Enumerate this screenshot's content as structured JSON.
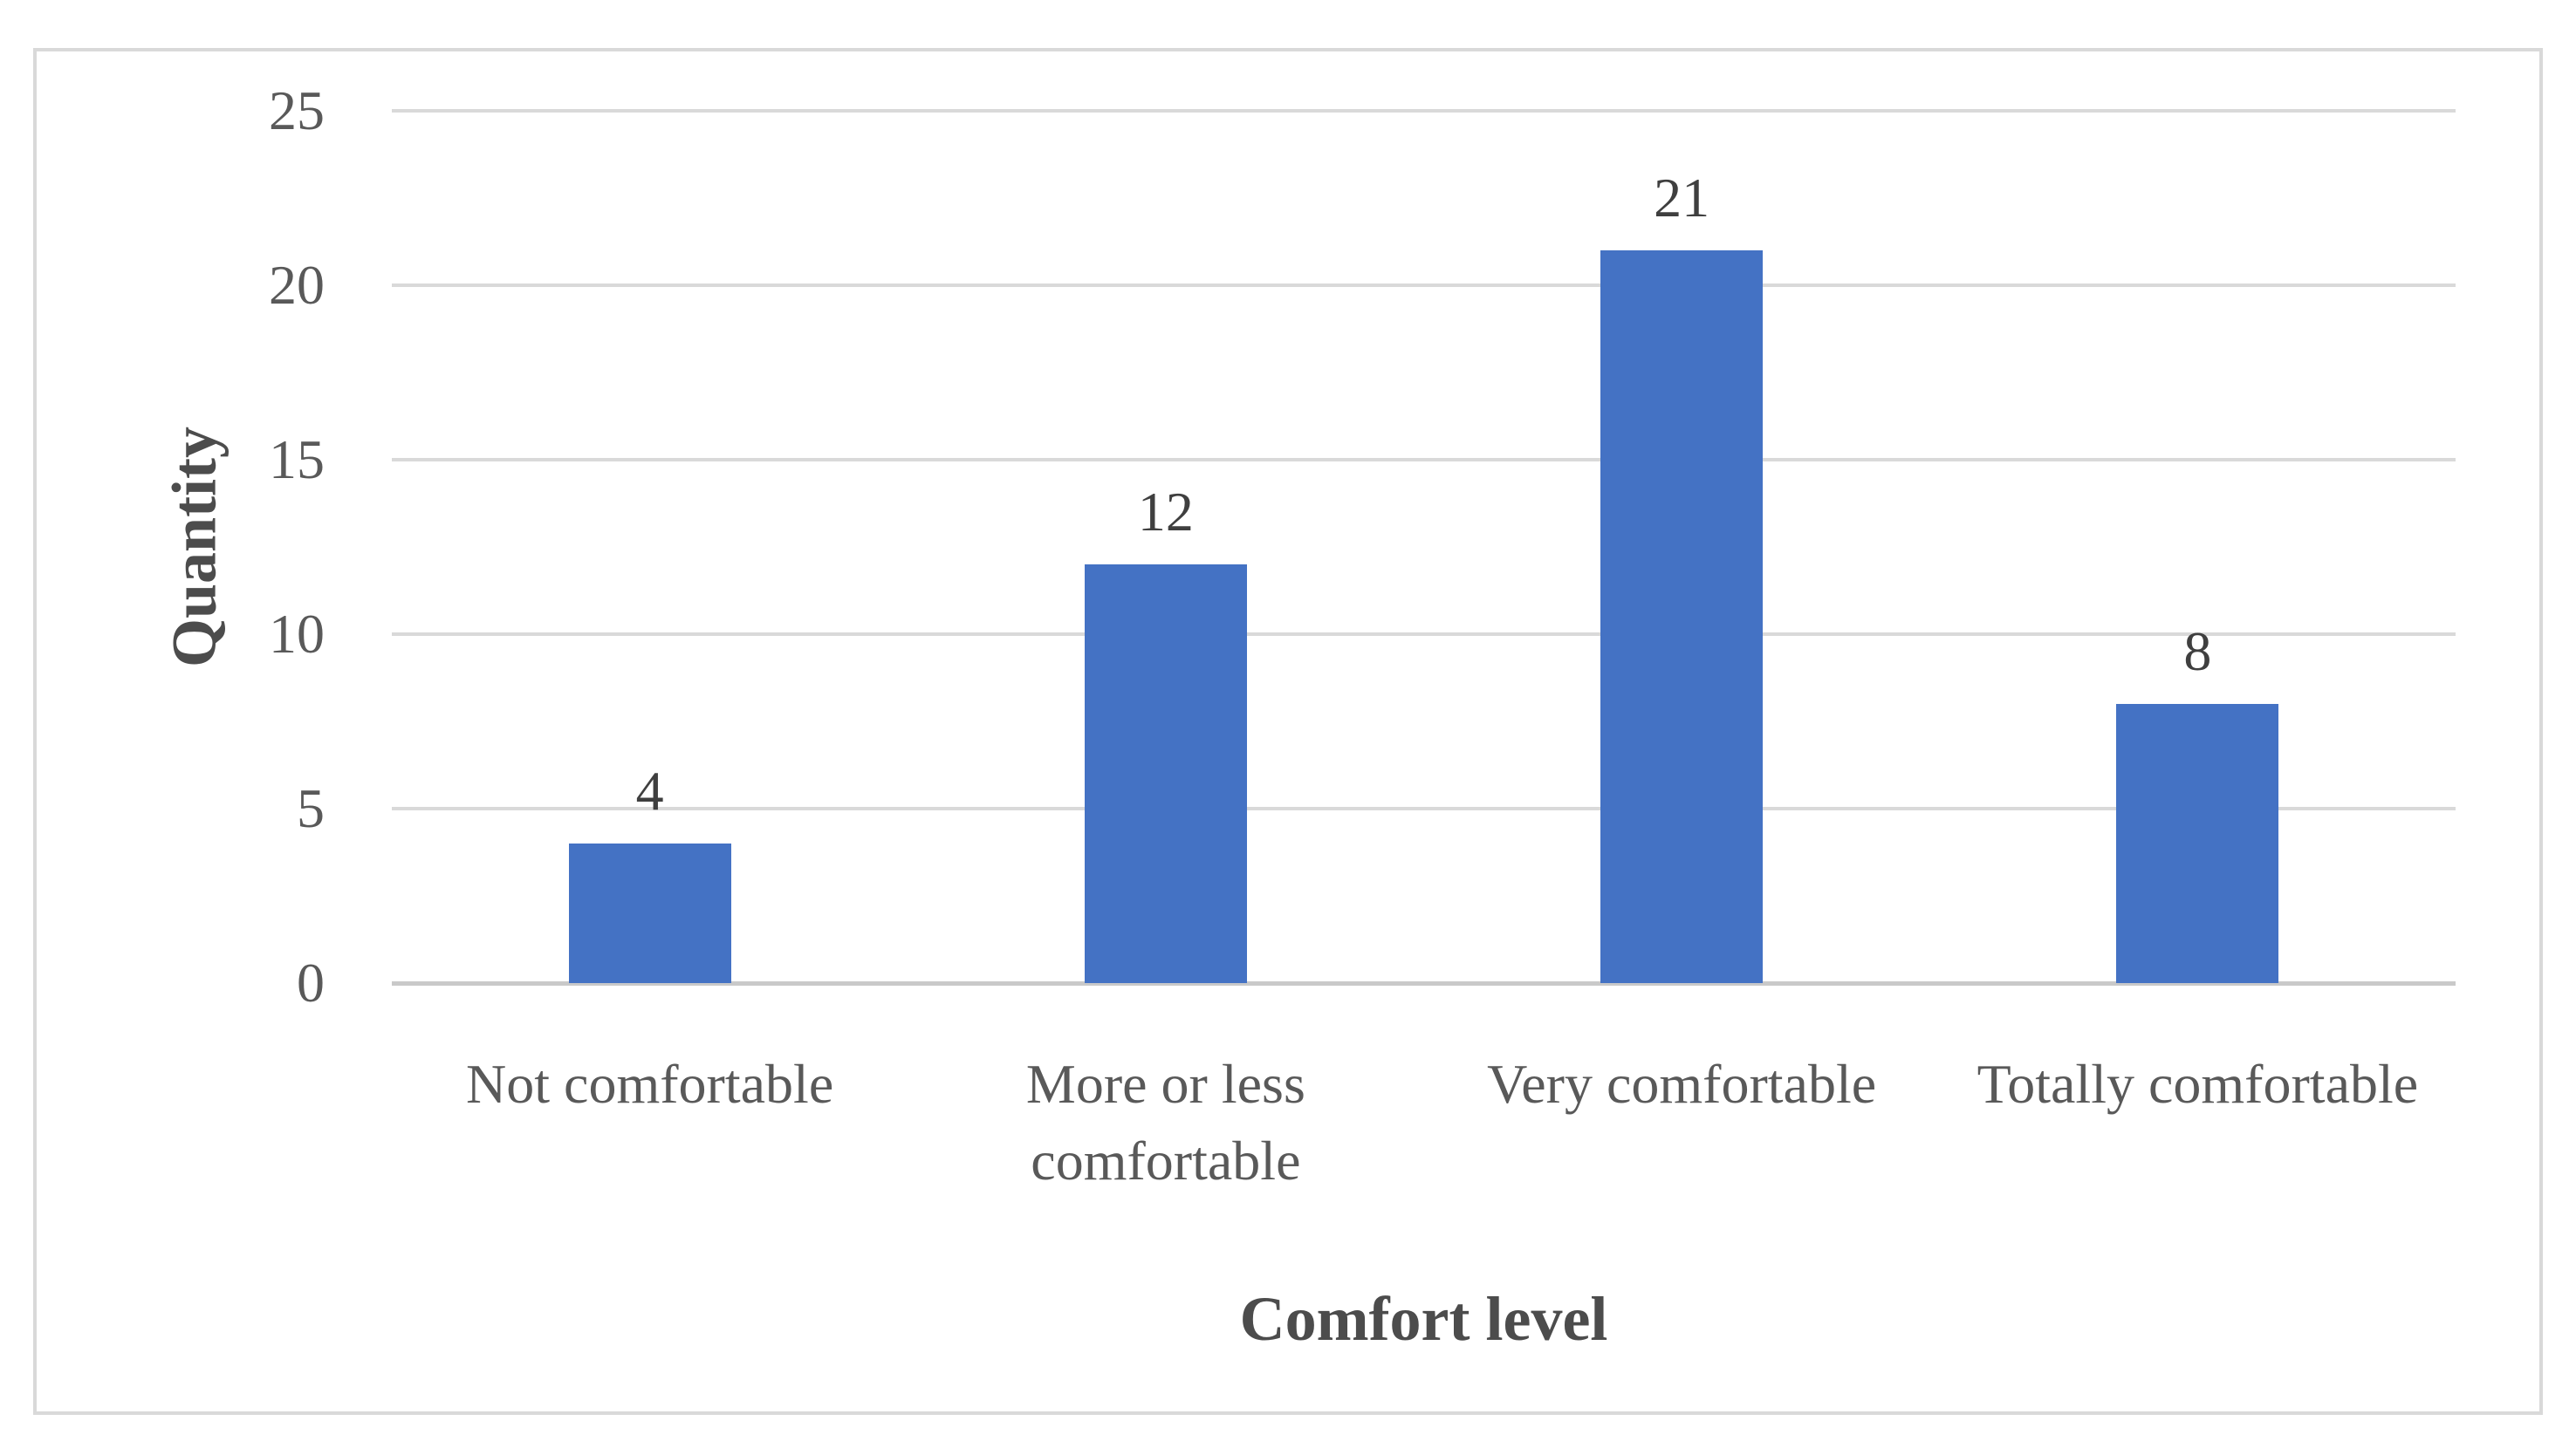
{
  "chart_data": {
    "type": "bar",
    "title": "",
    "categories": [
      "Not comfortable",
      "More or less comfortable",
      "Very comfortable",
      "Totally comfortable"
    ],
    "values": [
      4,
      12,
      21,
      8
    ],
    "data_labels": [
      "4",
      "12",
      "21",
      "8"
    ],
    "xlabel": "Comfort level",
    "ylabel": "Quantity",
    "ylim": [
      0,
      25
    ],
    "yticks": [
      0,
      5,
      10,
      15,
      20,
      25
    ],
    "grid": "horizontal-only",
    "legend": "none",
    "bar_color": "#4472C4",
    "gridline_color": "#D9D9D9",
    "baseline_color": "#C9C9C9",
    "tick_label_color": "#595959",
    "category_label_color": "#595959",
    "data_label_color": "#3F3F3F",
    "axis_title_color": "#4C4C4C",
    "frame_border_color": "#D9D9D9",
    "background_color": "#FFFFFF"
  }
}
